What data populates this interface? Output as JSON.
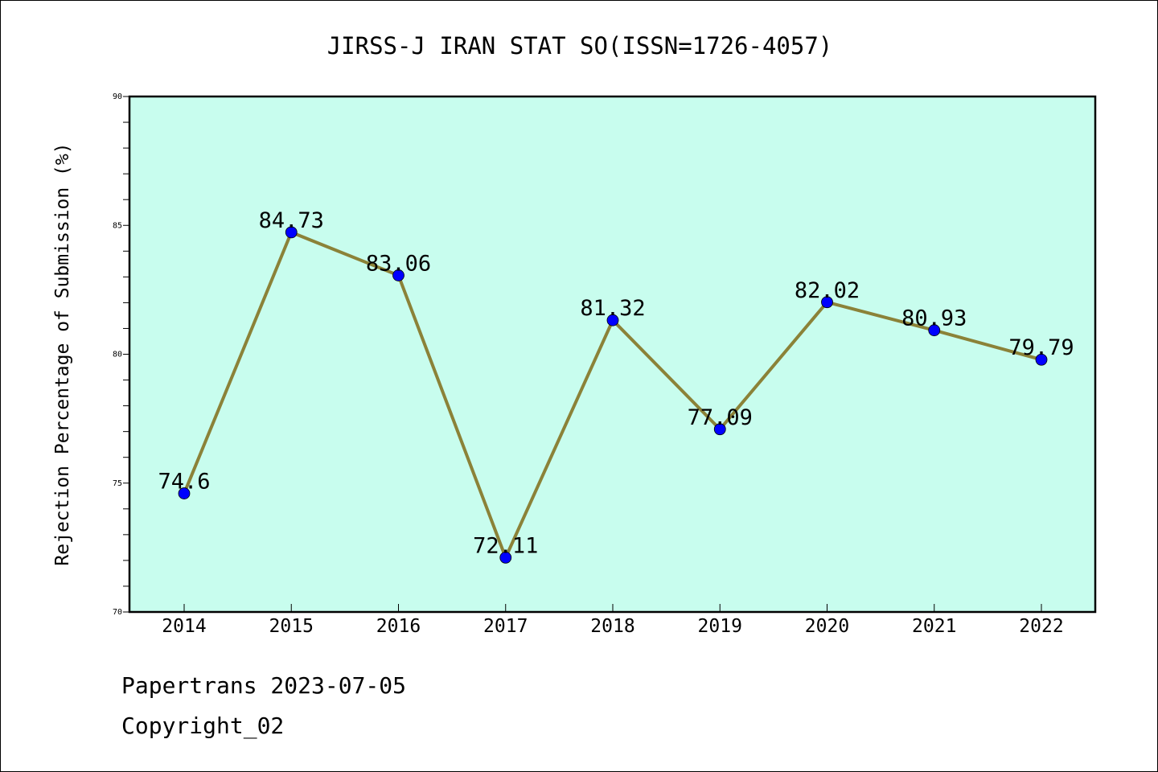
{
  "chart_data": {
    "type": "line",
    "title": "JIRSS-J IRAN STAT SO(ISSN=1726-4057)",
    "xlabel": "",
    "ylabel": "Rejection Percentage of Submission (%)",
    "categories": [
      "2014",
      "2015",
      "2016",
      "2017",
      "2018",
      "2019",
      "2020",
      "2021",
      "2022"
    ],
    "series": [
      {
        "values": [
          74.6,
          84.73,
          83.06,
          72.11,
          81.32,
          77.09,
          82.02,
          80.93,
          79.79
        ],
        "labels": [
          "74.6",
          "84.73",
          "83.06",
          "72.11",
          "81.32",
          "77.09",
          "82.02",
          "80.93",
          "79.79"
        ]
      }
    ],
    "ylim": [
      70,
      90
    ],
    "yticks": [
      70,
      75,
      80,
      85,
      90
    ],
    "grid": false,
    "plot_background": "#c8fdee",
    "line_color": "#8b8238",
    "marker_color": "#0000ff"
  },
  "footer": {
    "line1": "Papertrans 2023-07-05",
    "line2": "Copyright_02"
  }
}
